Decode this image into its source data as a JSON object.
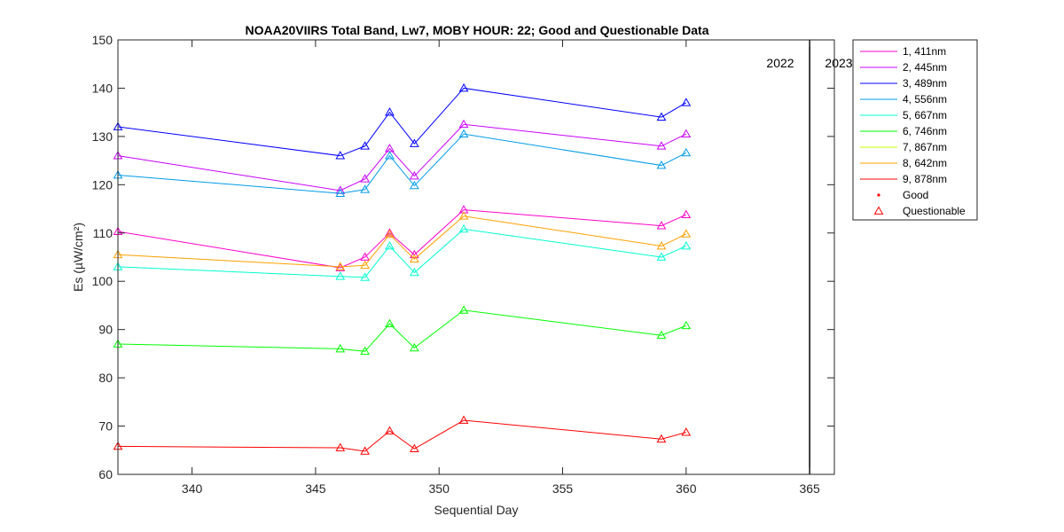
{
  "chart_data": {
    "type": "line",
    "title": "NOAA20VIIRS Total Band,  Lw7, MOBY HOUR: 22;  Good and Questionable Data",
    "xlabel": "Sequential Day",
    "ylabel": "Es (µW/cm²)",
    "xlim": [
      337,
      366
    ],
    "ylim": [
      60,
      150
    ],
    "xticks": [
      340,
      345,
      350,
      355,
      360,
      365
    ],
    "yticks": [
      60,
      70,
      80,
      90,
      100,
      110,
      120,
      130,
      140,
      150
    ],
    "grid": false,
    "legend_position": "outside-top-right",
    "x": [
      337,
      346,
      347,
      348,
      349,
      351,
      359,
      360
    ],
    "series": [
      {
        "name": "1, 411nm",
        "color": "#ff00c8",
        "values": [
          110.3,
          102.8,
          105.0,
          110.0,
          105.5,
          114.8,
          111.5,
          113.8
        ]
      },
      {
        "name": "2, 445nm",
        "color": "#c800ff",
        "values": [
          126.0,
          118.8,
          121.2,
          127.5,
          121.8,
          132.5,
          128.0,
          130.5
        ]
      },
      {
        "name": "3, 489nm",
        "color": "#0000ff",
        "values": [
          132.0,
          126.0,
          128.0,
          135.0,
          128.5,
          140.0,
          134.0,
          137.0
        ]
      },
      {
        "name": "4, 556nm",
        "color": "#009be6",
        "values": [
          122.0,
          118.2,
          119.0,
          126.0,
          119.8,
          130.5,
          124.0,
          126.6
        ]
      },
      {
        "name": "5, 667nm",
        "color": "#00ffd2",
        "values": [
          103.0,
          101.0,
          100.8,
          107.3,
          101.8,
          110.8,
          105.0,
          107.3
        ]
      },
      {
        "name": "6, 746nm",
        "color": "#00ff00",
        "values": [
          87.0,
          86.0,
          85.5,
          91.2,
          86.2,
          94.0,
          88.8,
          90.8
        ]
      },
      {
        "name": "7, 867nm",
        "color": "#c8ff00",
        "values": [
          null,
          null,
          null,
          null,
          null,
          null,
          null,
          null
        ]
      },
      {
        "name": "8, 642nm",
        "color": "#ffa000",
        "values": [
          105.5,
          103.0,
          103.3,
          109.7,
          104.6,
          113.5,
          107.3,
          109.8
        ]
      },
      {
        "name": "9, 878nm",
        "color": "#ff0000",
        "values": [
          65.8,
          65.5,
          64.8,
          69.0,
          65.3,
          71.2,
          67.3,
          68.7
        ]
      }
    ],
    "marker_legend": [
      {
        "name": "Good",
        "marker": "dot",
        "color": "#ff0000"
      },
      {
        "name": "Questionable",
        "marker": "triangle",
        "color": "#ff0000"
      }
    ],
    "year_divider": {
      "x": 365,
      "left_label": "2022",
      "right_label": "2023"
    }
  }
}
